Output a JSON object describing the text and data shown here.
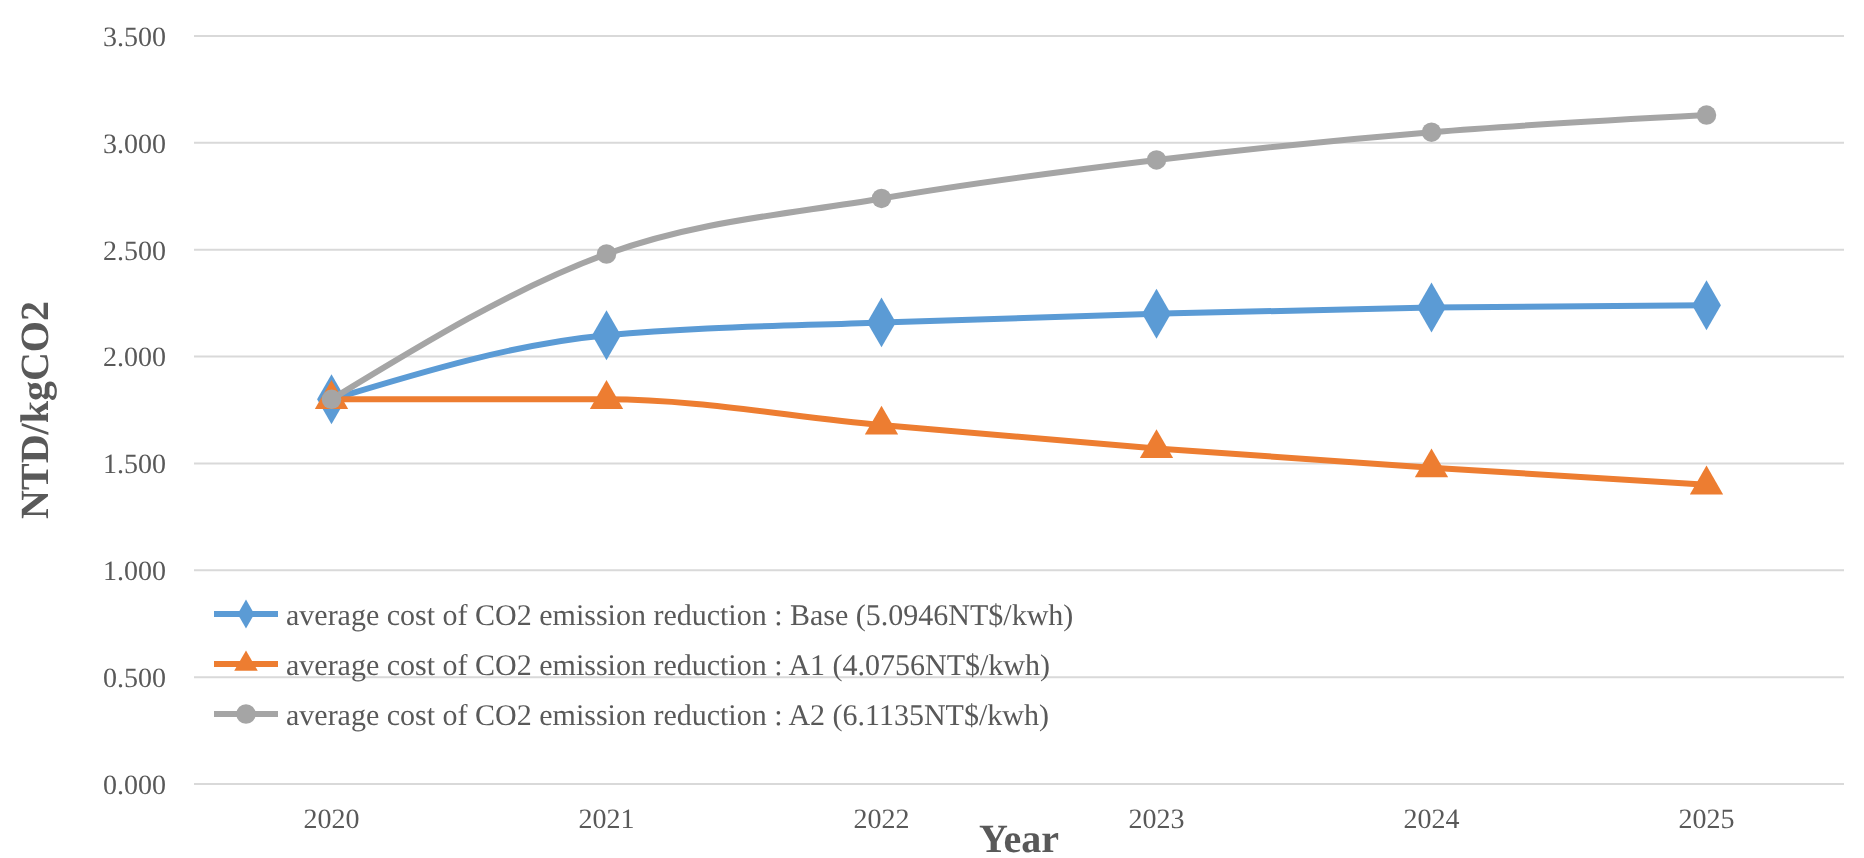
{
  "chart_data": {
    "type": "line",
    "xlabel": "Year",
    "ylabel": "NTD/kgCO2",
    "categories": [
      "2020",
      "2021",
      "2022",
      "2023",
      "2024",
      "2025"
    ],
    "series": [
      {
        "name": "average cost of CO2 emission reduction : Base (5.0946NT$/kwh)",
        "color": "#5b9bd5",
        "marker": "diamond",
        "values": [
          1.8,
          2.1,
          2.16,
          2.2,
          2.23,
          2.24
        ]
      },
      {
        "name": "average cost of CO2 emission reduction : A1 (4.0756NT$/kwh)",
        "color": "#ed7d31",
        "marker": "triangle",
        "values": [
          1.8,
          1.8,
          1.68,
          1.57,
          1.48,
          1.4
        ]
      },
      {
        "name": "average cost of CO2 emission reduction : A2 (6.1135NT$/kwh)",
        "color": "#a5a5a5",
        "marker": "circle",
        "values": [
          1.8,
          2.48,
          2.74,
          2.92,
          3.05,
          3.13
        ]
      }
    ],
    "ylim": [
      0,
      3.5
    ],
    "yticks": [
      {
        "value": 0,
        "label": "0.000"
      },
      {
        "value": 0.5,
        "label": "0.500"
      },
      {
        "value": 1,
        "label": "1.000"
      },
      {
        "value": 1.5,
        "label": "1.500"
      },
      {
        "value": 2,
        "label": "2.000"
      },
      {
        "value": 2.5,
        "label": "2.500"
      },
      {
        "value": 3,
        "label": "3.000"
      },
      {
        "value": 3.5,
        "label": "3.500"
      }
    ],
    "grid": "y",
    "legend": "bottom left"
  }
}
